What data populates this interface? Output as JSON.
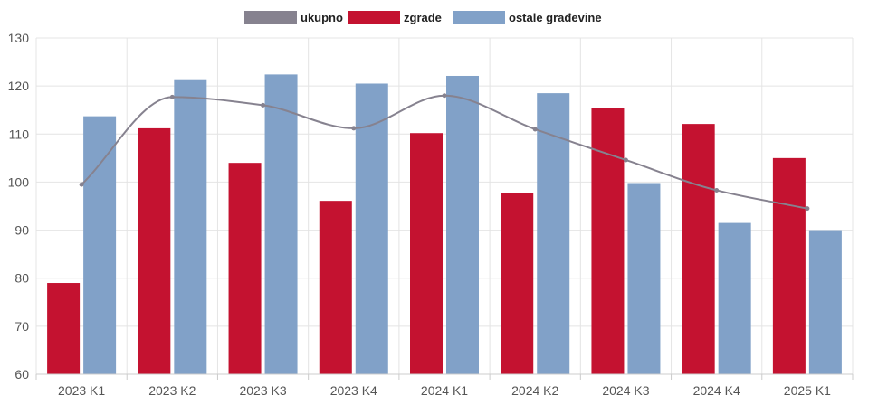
{
  "chart_data": {
    "type": "bar",
    "categories": [
      "2023 K1",
      "2023 K2",
      "2023 K3",
      "2023 K4",
      "2024 K1",
      "2024 K2",
      "2024 K3",
      "2024 K4",
      "2025 K1"
    ],
    "series": [
      {
        "name": "ukupno",
        "type": "line",
        "color": "#86828f",
        "values": [
          99.5,
          117.7,
          116.0,
          111.2,
          118.0,
          111.0,
          104.6,
          98.3,
          94.5
        ]
      },
      {
        "name": "zgrade",
        "type": "bar",
        "color": "#c41230",
        "values": [
          79.0,
          111.2,
          104.0,
          96.1,
          110.2,
          97.8,
          115.4,
          112.1,
          105.0
        ]
      },
      {
        "name": "ostale građevine",
        "type": "bar",
        "color": "#81a1c8",
        "values": [
          113.7,
          121.4,
          122.4,
          120.5,
          122.1,
          118.5,
          99.8,
          91.5,
          90.0
        ]
      }
    ],
    "ylim": [
      60,
      130
    ],
    "yticks": [
      60,
      70,
      80,
      90,
      100,
      110,
      120,
      130
    ],
    "grid": true,
    "legend_position": "top-center"
  }
}
